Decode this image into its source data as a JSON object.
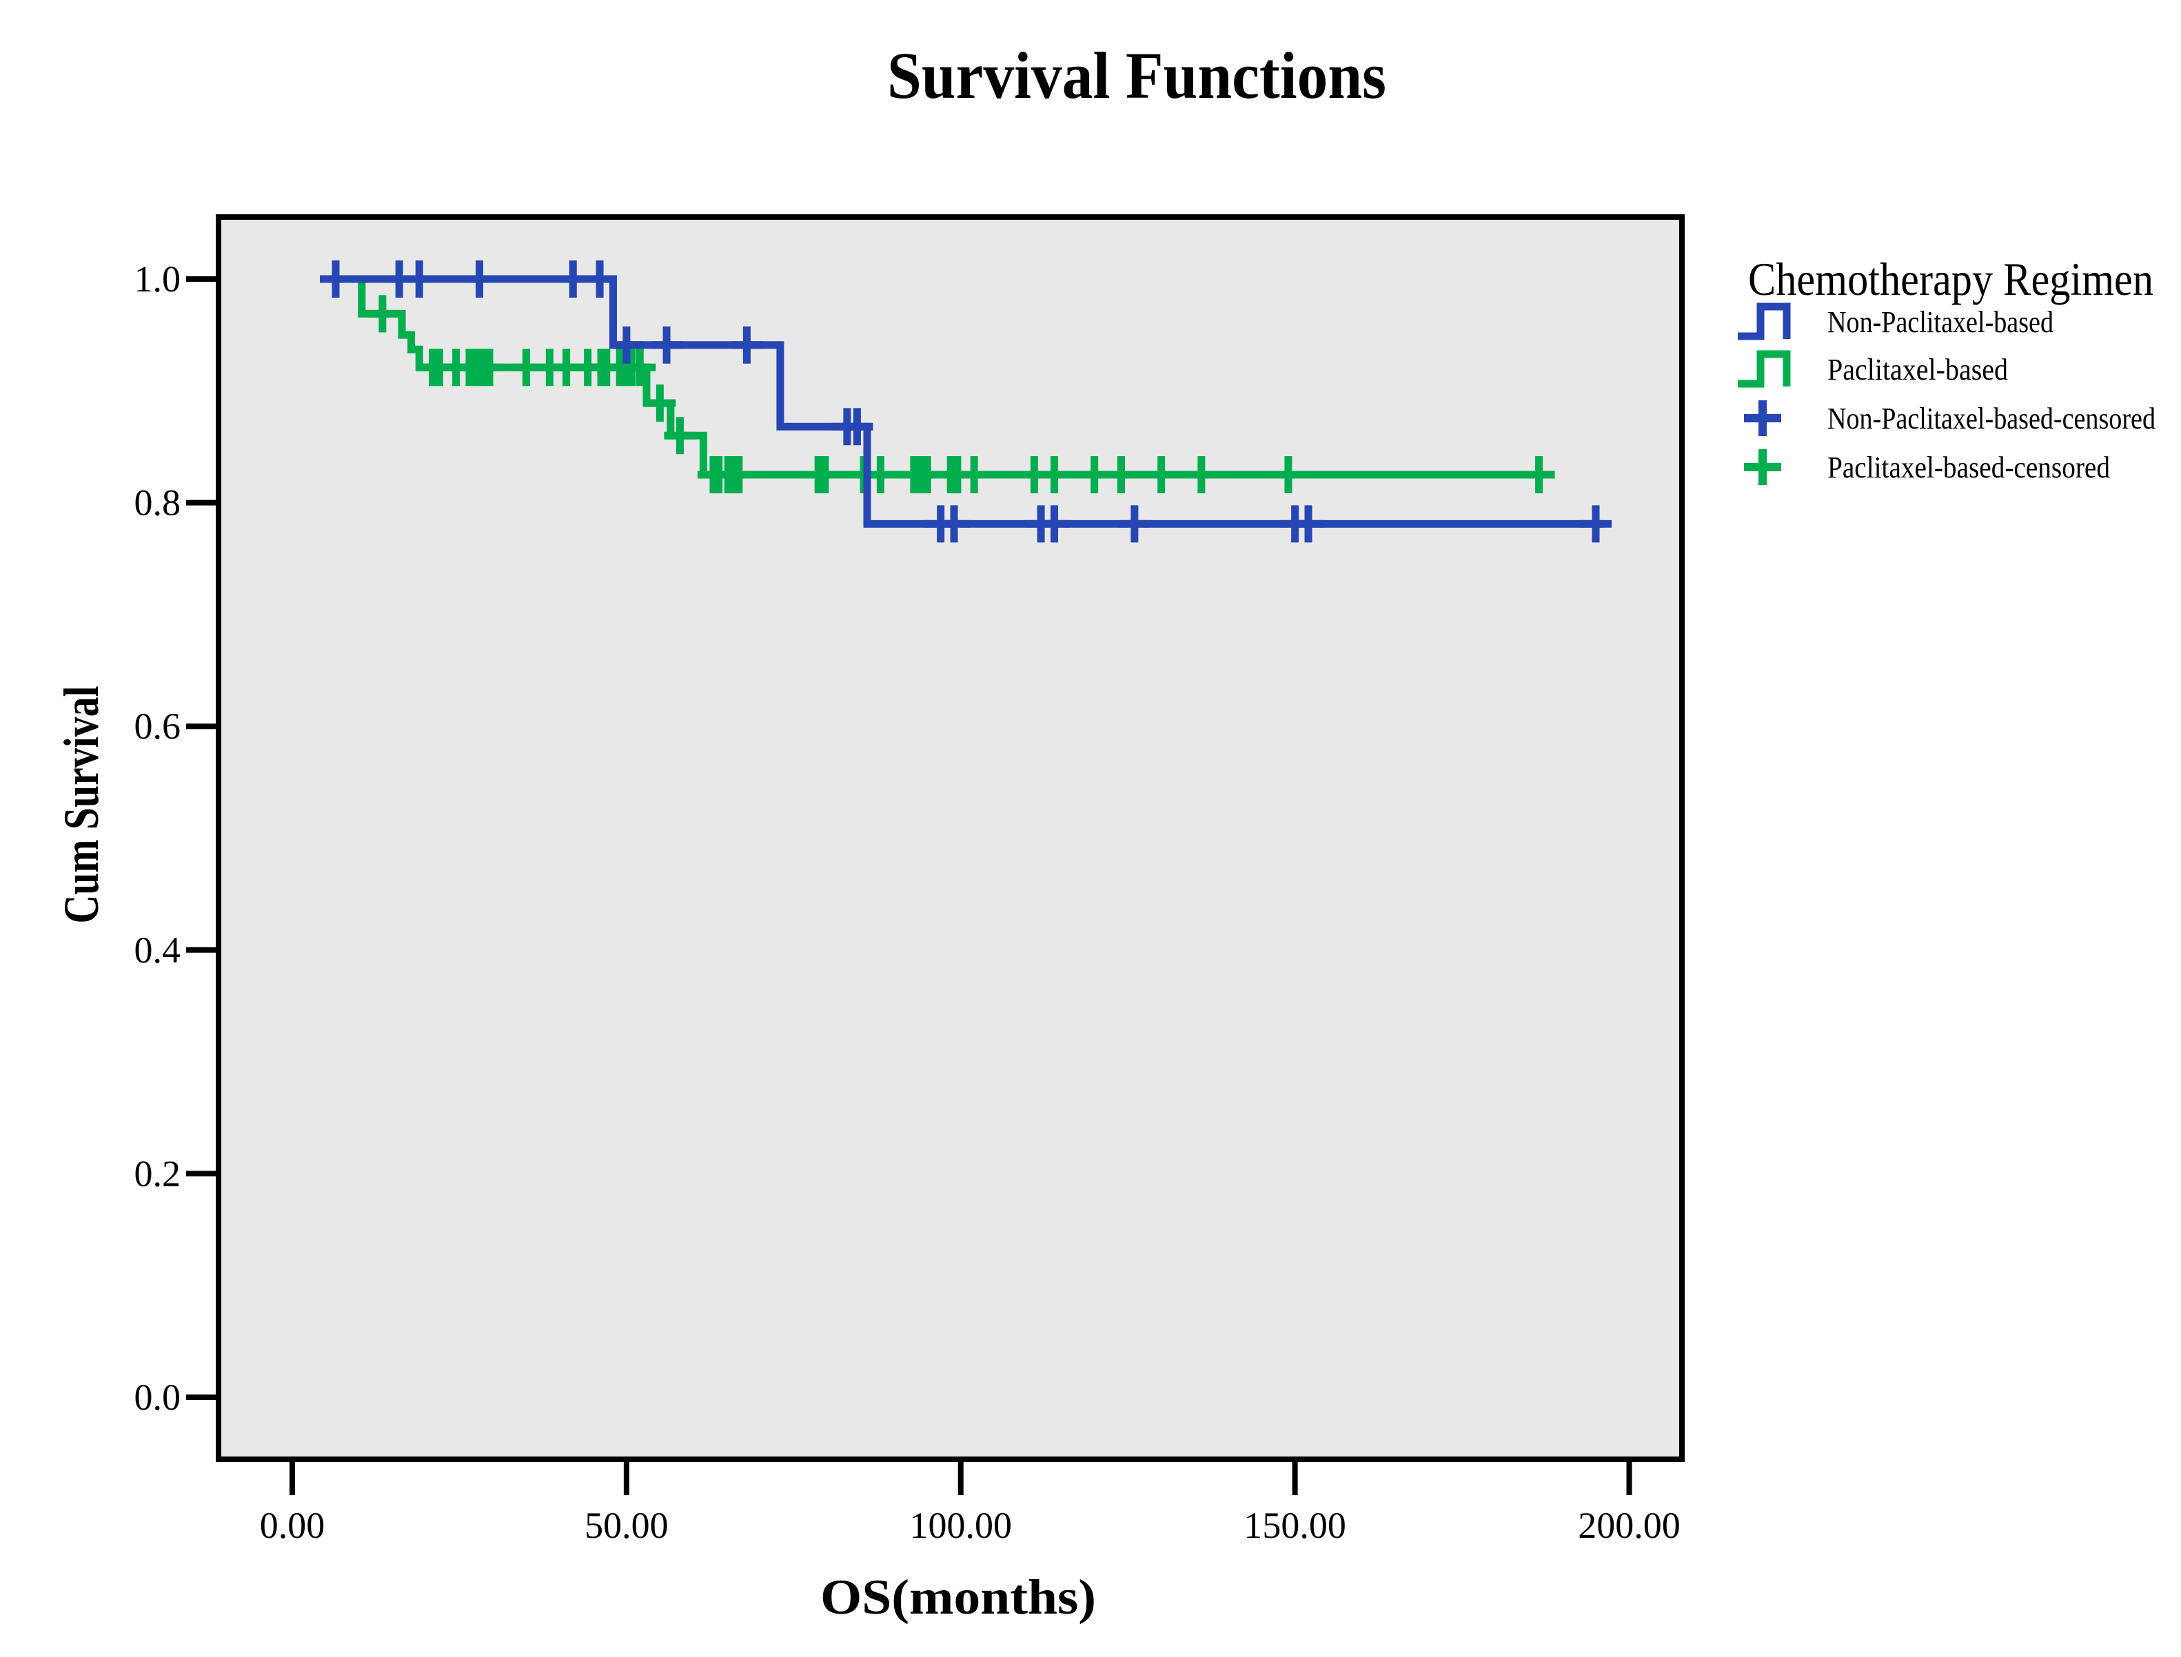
{
  "title": "Survival Functions",
  "axes": {
    "x": {
      "label": "OS(months)",
      "tick_labels": [
        "0.00",
        "50.00",
        "100.00",
        "150.00",
        "200.00"
      ],
      "tick_values": [
        0,
        50,
        100,
        150,
        200
      ],
      "range": [
        0,
        200
      ]
    },
    "y": {
      "label": "Cum Survival",
      "tick_labels": [
        "0.0",
        "0.2",
        "0.4",
        "0.6",
        "0.8",
        "1.0"
      ],
      "tick_values": [
        0,
        0.2,
        0.4,
        0.6,
        0.8,
        1.0
      ],
      "range": [
        0,
        1
      ]
    }
  },
  "legend": {
    "title": "Chemotherapy Regimen",
    "items": [
      {
        "label": "Non-Paclitaxel-based",
        "symbol": "step-icon",
        "color": "#2646B4"
      },
      {
        "label": "Paclitaxel-based",
        "symbol": "step-icon",
        "color": "#00AE4E"
      },
      {
        "label": "Non-Paclitaxel-based-censored",
        "symbol": "plus-icon",
        "color": "#2646B4"
      },
      {
        "label": "Paclitaxel-based-censored",
        "symbol": "plus-icon",
        "color": "#00AE4E"
      }
    ]
  },
  "colors": {
    "non_paclitaxel_blue": "#2646B4",
    "paclitaxel_green": "#00AE4E",
    "plot_background": "#E8E8E8",
    "frame_stroke": "#000000",
    "page_background": "#FFFFFF"
  },
  "chart_data": {
    "type": "line",
    "subtype": "kaplan-meier-step",
    "title": "Survival Functions",
    "xlabel": "OS(months)",
    "ylabel": "Cum Survival",
    "xlim": [
      0,
      200
    ],
    "ylim": [
      0,
      1
    ],
    "grid": false,
    "legend_position": "right",
    "series": [
      {
        "name": "Non-Paclitaxel-based",
        "color": "#2646B4",
        "steps": [
          [
            5,
            1.0
          ],
          [
            48,
            0.941
          ],
          [
            73,
            0.868
          ],
          [
            86,
            0.781
          ]
        ],
        "end_x": 196,
        "censored": [
          [
            6.5,
            1.0
          ],
          [
            16,
            1.0
          ],
          [
            19,
            1.0
          ],
          [
            28,
            1.0
          ],
          [
            42,
            1.0
          ],
          [
            46,
            1.0
          ],
          [
            50,
            0.941
          ],
          [
            56,
            0.941
          ],
          [
            68,
            0.941
          ],
          [
            83,
            0.868
          ],
          [
            84.5,
            0.868
          ],
          [
            97,
            0.781
          ],
          [
            99,
            0.781
          ],
          [
            112,
            0.781
          ],
          [
            114,
            0.781
          ],
          [
            126,
            0.781
          ],
          [
            150,
            0.781
          ],
          [
            152,
            0.781
          ],
          [
            195,
            0.781
          ]
        ]
      },
      {
        "name": "Paclitaxel-based",
        "color": "#00AE4E",
        "steps": [
          [
            5,
            1.0
          ],
          [
            10.4,
            0.969
          ],
          [
            16.4,
            0.95
          ],
          [
            17.8,
            0.937
          ],
          [
            19,
            0.921
          ],
          [
            53,
            0.889
          ],
          [
            56.6,
            0.86
          ],
          [
            61.5,
            0.825
          ]
        ],
        "end_x": 188,
        "censored": [
          [
            13.5,
            0.969
          ],
          [
            21,
            0.921
          ],
          [
            22,
            0.921
          ],
          [
            24.5,
            0.921
          ],
          [
            26.5,
            0.921
          ],
          [
            27.5,
            0.921
          ],
          [
            28.5,
            0.921
          ],
          [
            29.5,
            0.921
          ],
          [
            35,
            0.921
          ],
          [
            38.5,
            0.921
          ],
          [
            41,
            0.921
          ],
          [
            44.2,
            0.921
          ],
          [
            46.2,
            0.921
          ],
          [
            47,
            0.921
          ],
          [
            49,
            0.921
          ],
          [
            50.1,
            0.921
          ],
          [
            50.8,
            0.921
          ],
          [
            52,
            0.921
          ],
          [
            55,
            0.889
          ],
          [
            58,
            0.86
          ],
          [
            63,
            0.825
          ],
          [
            63.8,
            0.825
          ],
          [
            65.2,
            0.825
          ],
          [
            66,
            0.825
          ],
          [
            66.8,
            0.825
          ],
          [
            78.7,
            0.825
          ],
          [
            79.7,
            0.825
          ],
          [
            85.5,
            0.825
          ],
          [
            88,
            0.825
          ],
          [
            93,
            0.825
          ],
          [
            94,
            0.825
          ],
          [
            95,
            0.825
          ],
          [
            98.5,
            0.825
          ],
          [
            99.5,
            0.825
          ],
          [
            102,
            0.825
          ],
          [
            111,
            0.825
          ],
          [
            114,
            0.825
          ],
          [
            120,
            0.825
          ],
          [
            124,
            0.825
          ],
          [
            130,
            0.825
          ],
          [
            136,
            0.825
          ],
          [
            149,
            0.825
          ],
          [
            186.5,
            0.825
          ]
        ]
      }
    ]
  }
}
